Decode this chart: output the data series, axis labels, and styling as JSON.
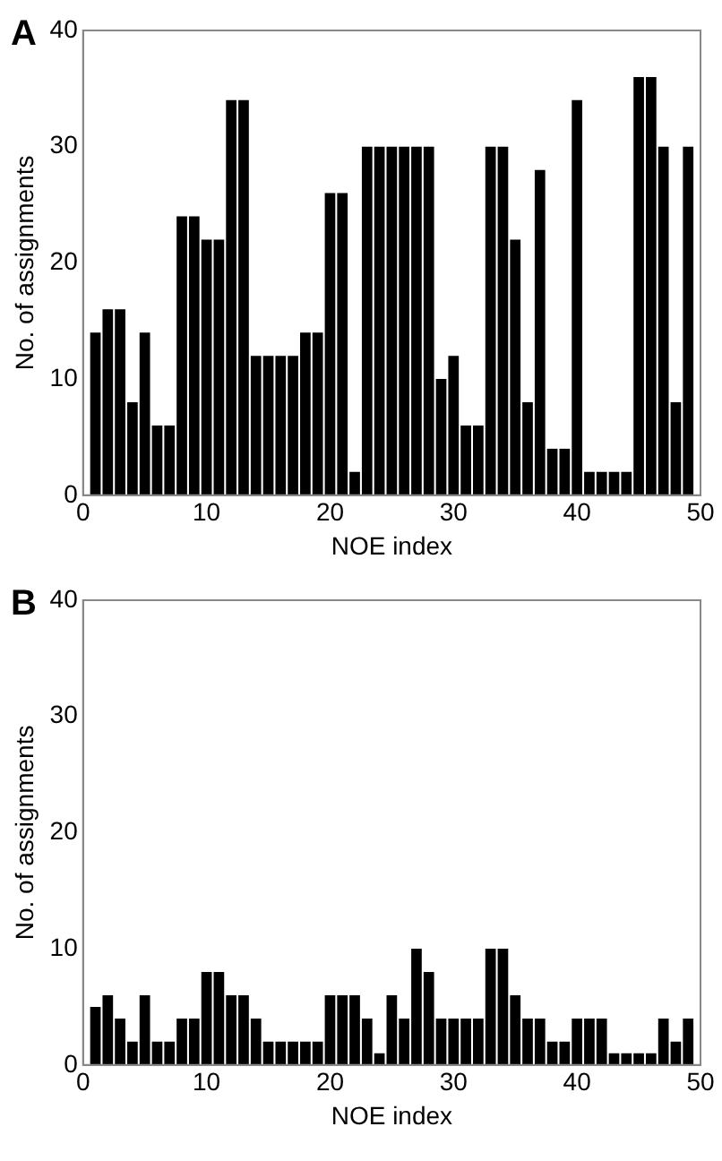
{
  "chart_data": [
    {
      "type": "bar",
      "title": "A",
      "xlabel": "NOE index",
      "ylabel": "No. of assignments",
      "color": "#000000",
      "x": [
        1,
        2,
        3,
        4,
        5,
        6,
        7,
        8,
        9,
        10,
        11,
        12,
        13,
        14,
        15,
        16,
        17,
        18,
        19,
        20,
        21,
        22,
        23,
        24,
        25,
        26,
        27,
        28,
        29,
        30,
        31,
        32,
        33,
        34,
        35,
        36,
        37,
        38,
        39,
        40,
        41,
        42,
        43,
        44,
        45,
        46,
        47,
        48,
        49
      ],
      "values": [
        14,
        16,
        16,
        8,
        14,
        6,
        6,
        24,
        24,
        22,
        22,
        34,
        34,
        12,
        12,
        12,
        12,
        14,
        14,
        26,
        26,
        2,
        30,
        30,
        30,
        30,
        30,
        30,
        10,
        12,
        6,
        6,
        30,
        30,
        22,
        8,
        28,
        4,
        4,
        34,
        2,
        2,
        2,
        2,
        36,
        36,
        30,
        8,
        30
      ],
      "xlim": [
        0,
        50
      ],
      "xticks": [
        0,
        10,
        20,
        30,
        40,
        50
      ],
      "ylim": [
        0,
        40
      ],
      "yticks": [
        0,
        10,
        20,
        30,
        40
      ]
    },
    {
      "type": "bar",
      "title": "B",
      "xlabel": "NOE index",
      "ylabel": "No. of assignments",
      "color": "#000000",
      "x": [
        1,
        2,
        3,
        4,
        5,
        6,
        7,
        8,
        9,
        10,
        11,
        12,
        13,
        14,
        15,
        16,
        17,
        18,
        19,
        20,
        21,
        22,
        23,
        24,
        25,
        26,
        27,
        28,
        29,
        30,
        31,
        32,
        33,
        34,
        35,
        36,
        37,
        38,
        39,
        40,
        41,
        42,
        43,
        44,
        45,
        46,
        47,
        48,
        49
      ],
      "values": [
        5,
        6,
        4,
        2,
        6,
        2,
        2,
        4,
        4,
        8,
        8,
        6,
        6,
        4,
        2,
        2,
        2,
        2,
        2,
        6,
        6,
        6,
        4,
        1,
        6,
        4,
        10,
        8,
        4,
        4,
        4,
        4,
        10,
        10,
        6,
        4,
        4,
        2,
        2,
        4,
        4,
        4,
        1,
        1,
        1,
        1,
        4,
        2,
        4
      ],
      "xlim": [
        0,
        50
      ],
      "xticks": [
        0,
        10,
        20,
        30,
        40,
        50
      ],
      "ylim": [
        0,
        40
      ],
      "yticks": [
        0,
        10,
        20,
        30,
        40
      ]
    }
  ]
}
